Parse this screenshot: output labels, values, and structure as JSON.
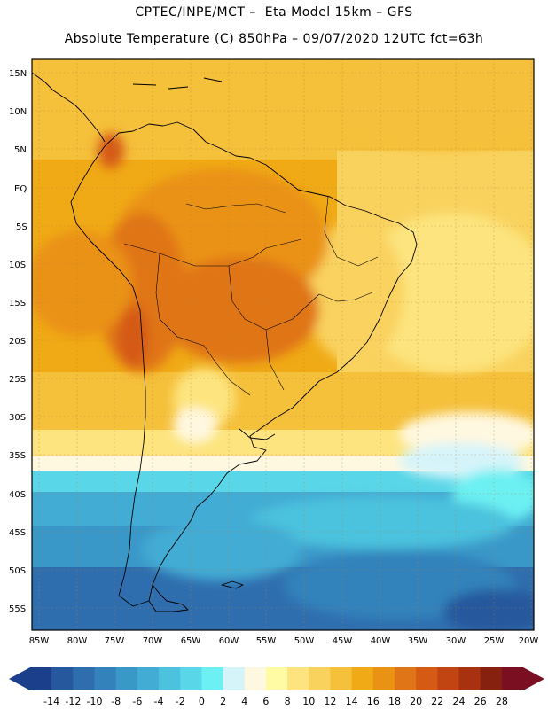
{
  "header": {
    "line1": "CPTEC/INPE/MCT –  Eta Model 15km – GFS",
    "line2": "Absolute Temperature (C) 850hPa – 09/07/2020 12UTC fct=63h"
  },
  "map": {
    "lat_labels": [
      "15N",
      "10N",
      "5N",
      "EQ",
      "5S",
      "10S",
      "15S",
      "20S",
      "25S",
      "30S",
      "35S",
      "40S",
      "45S",
      "50S",
      "55S"
    ],
    "lon_labels": [
      "85W",
      "80W",
      "75W",
      "70W",
      "65W",
      "60W",
      "55W",
      "50W",
      "45W",
      "40W",
      "35W",
      "30W",
      "25W",
      "20W"
    ]
  },
  "colorbar": {
    "colors": [
      "#1b3f8b",
      "#26589d",
      "#2f6eae",
      "#3382bc",
      "#3a98c8",
      "#42acd4",
      "#4cc2de",
      "#59d6e8",
      "#6cf0f2",
      "#d5f4fa",
      "#fff8e0",
      "#fffaa4",
      "#fde47e",
      "#f9d25e",
      "#f5c03a",
      "#f0aa16",
      "#ea9213",
      "#e07518",
      "#d55a14",
      "#c14512",
      "#a83210",
      "#86200f",
      "#7a0f22"
    ],
    "labels": [
      "-14",
      "-12",
      "-10",
      "-8",
      "-6",
      "-4",
      "-2",
      "0",
      "2",
      "4",
      "6",
      "8",
      "10",
      "12",
      "14",
      "16",
      "18",
      "20",
      "22",
      "24",
      "26",
      "28"
    ],
    "under_color": "#1b3f8b",
    "over_color": "#7a0f22"
  }
}
